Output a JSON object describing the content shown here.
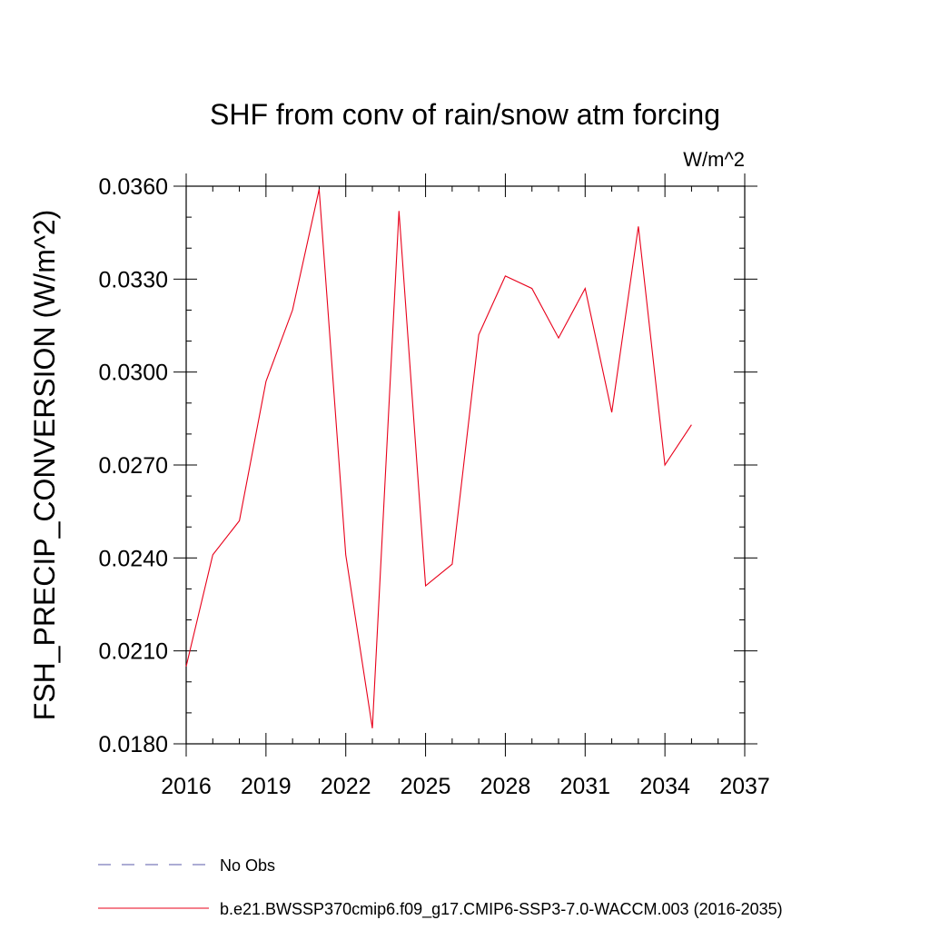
{
  "chart_data": {
    "type": "line",
    "title": "SHF from conv of rain/snow atm forcing",
    "units_label": "W/m^2",
    "xlabel": "",
    "ylabel": "FSH_PRECIP_CONVERSION  (W/m^2)",
    "xlim": [
      2016,
      2037
    ],
    "ylim": [
      0.018,
      0.036
    ],
    "x_ticks": [
      2016,
      2019,
      2022,
      2025,
      2028,
      2031,
      2034,
      2037
    ],
    "x_tick_labels": [
      "2016",
      "2019",
      "2022",
      "2025",
      "2028",
      "2031",
      "2034",
      "2037"
    ],
    "y_ticks": [
      0.018,
      0.021,
      0.024,
      0.027,
      0.03,
      0.033,
      0.036
    ],
    "y_tick_labels": [
      "0.0180",
      "0.0210",
      "0.0240",
      "0.0270",
      "0.0300",
      "0.0330",
      "0.0360"
    ],
    "grid": false,
    "legend_position": "bottom",
    "series": [
      {
        "name": "No Obs",
        "color": "#5a5aa8",
        "style": "dashed",
        "x": [],
        "values": []
      },
      {
        "name": "b.e21.BWSSP370cmip6.f09_g17.CMIP6-SSP3-7.0-WACCM.003 (2016-2035)",
        "color": "#e8001a",
        "style": "solid",
        "x": [
          2016,
          2017,
          2018,
          2019,
          2020,
          2021,
          2022,
          2023,
          2024,
          2025,
          2026,
          2027,
          2028,
          2029,
          2030,
          2031,
          2032,
          2033,
          2034,
          2035
        ],
        "values": [
          0.0205,
          0.0241,
          0.0252,
          0.0297,
          0.032,
          0.0359,
          0.0241,
          0.0185,
          0.0352,
          0.0231,
          0.0238,
          0.0312,
          0.0331,
          0.0327,
          0.0311,
          0.0327,
          0.0287,
          0.0347,
          0.027,
          0.0283
        ]
      }
    ]
  }
}
